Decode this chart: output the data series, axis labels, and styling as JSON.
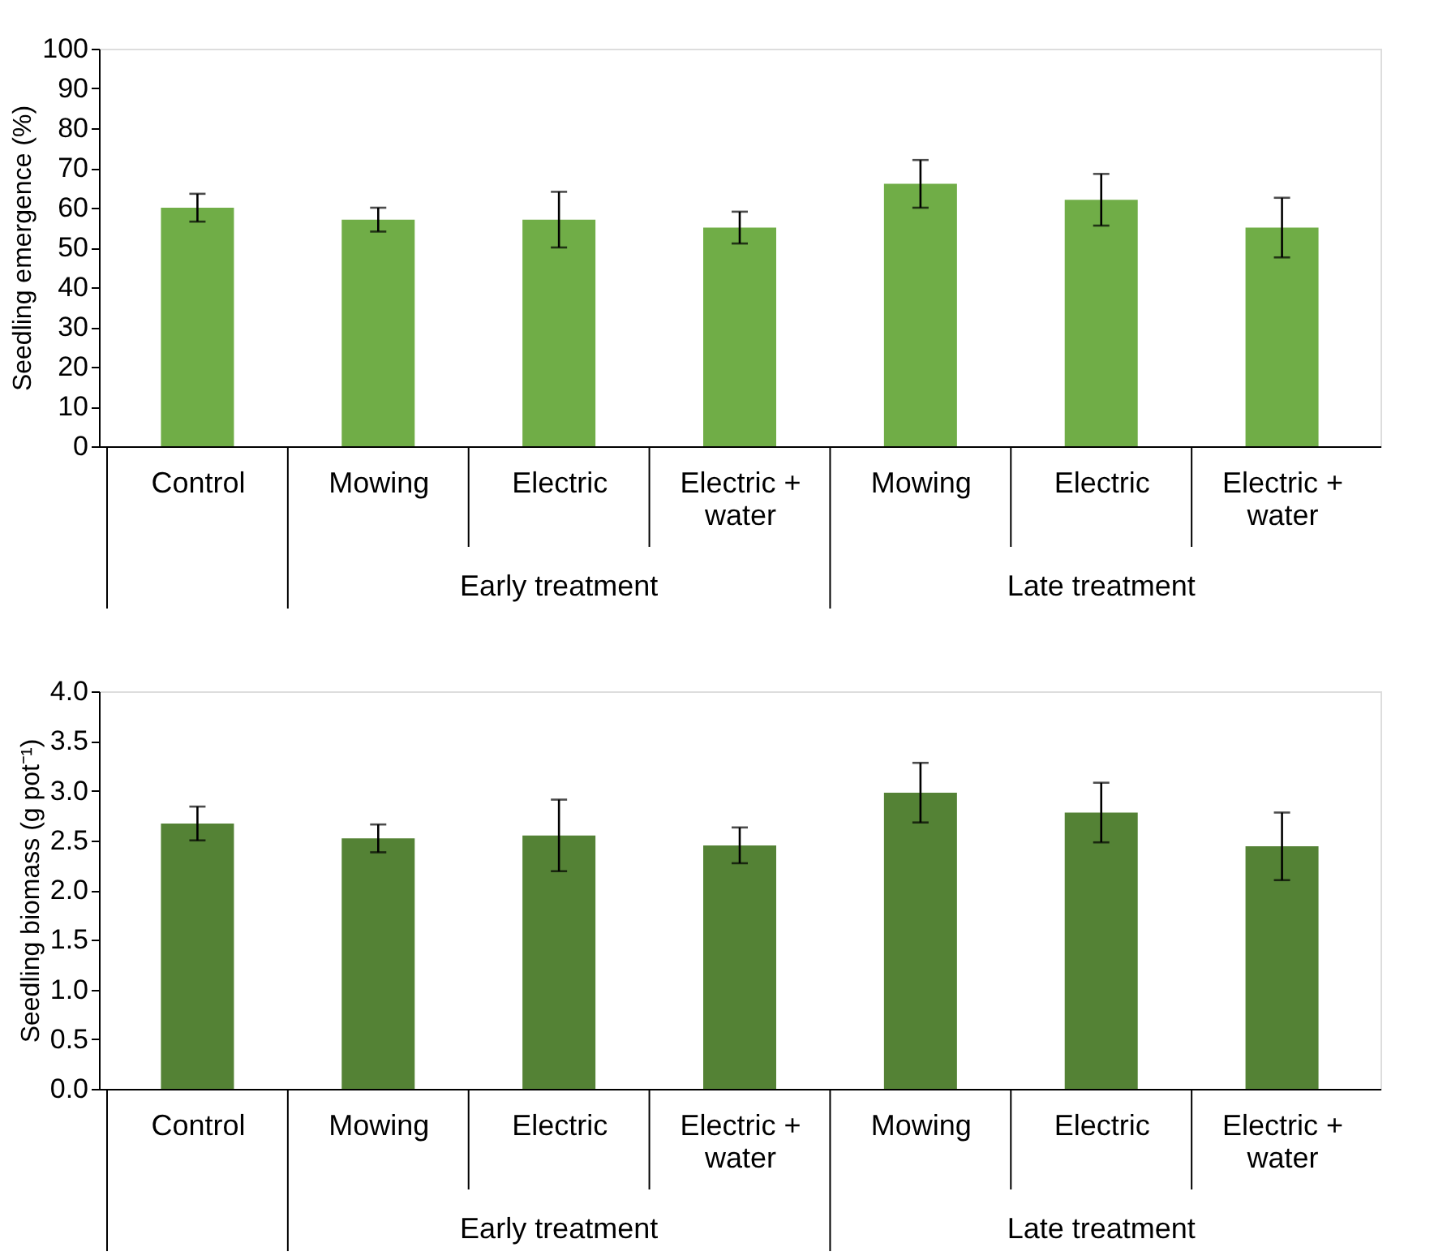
{
  "chart_data": [
    {
      "type": "bar",
      "ylabel": "Seedling emergence (%)",
      "categories": [
        "Control",
        "Mowing",
        "Electric",
        "Electric + water",
        "Mowing",
        "Electric",
        "Electric + water"
      ],
      "series": [
        {
          "color": "#70ad47",
          "values": [
            60,
            57,
            57,
            55,
            66,
            62,
            55
          ],
          "errors": [
            3.5,
            3,
            7,
            4,
            6,
            6.5,
            7.5
          ]
        }
      ],
      "ylim": [
        0,
        100
      ],
      "yticks": [
        0,
        10,
        20,
        30,
        40,
        50,
        60,
        70,
        80,
        90,
        100
      ],
      "grid": false,
      "annotations": [
        "Early treatment",
        "Late treatment"
      ]
    },
    {
      "type": "bar",
      "ylabel": "Seedling biomass (g pot⁻¹)",
      "categories": [
        "Control",
        "Mowing",
        "Electric",
        "Electric + water",
        "Mowing",
        "Electric",
        "Electric + water"
      ],
      "series": [
        {
          "color": "#548235",
          "values": [
            2.67,
            2.52,
            2.55,
            2.45,
            2.98,
            2.78,
            2.44
          ],
          "errors": [
            0.17,
            0.14,
            0.36,
            0.18,
            0.3,
            0.3,
            0.34
          ]
        }
      ],
      "ylim": [
        0,
        4
      ],
      "yticks": [
        {
          "value": 0,
          "label": "0.0"
        },
        {
          "value": 0.5,
          "label": "0.5"
        },
        {
          "value": 1,
          "label": "1.0"
        },
        {
          "value": 1.5,
          "label": "1.5"
        },
        {
          "value": 2,
          "label": "2.0"
        },
        {
          "value": 2.5,
          "label": "2.5"
        },
        {
          "value": 3,
          "label": "3.0"
        },
        {
          "value": 3.5,
          "label": "3.5"
        },
        {
          "value": 4,
          "label": "4.0"
        }
      ],
      "grid": false,
      "annotations": [
        "Early treatment",
        "Late treatment"
      ]
    }
  ]
}
